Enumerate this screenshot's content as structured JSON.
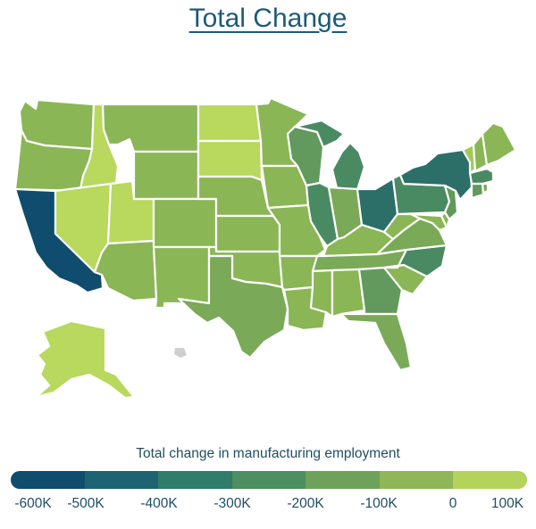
{
  "title": "Total Change",
  "legend": {
    "title": "Total change in manufacturing employment",
    "ticks": [
      "-600K",
      "-500K",
      "-400K",
      "-300K",
      "-200K",
      "-100K",
      "0",
      "100K"
    ],
    "colors": [
      "#0f4c6e",
      "#1e6372",
      "#2f7d6a",
      "#4c8f60",
      "#6ea25a",
      "#8fb658",
      "#b3d35a"
    ]
  },
  "colors": {
    "c0": "#0f4c6e",
    "c1": "#2c6e68",
    "c2": "#4a8a62",
    "c3": "#62995c",
    "c4": "#7aa958",
    "c5": "#8ab656",
    "c6": "#a3c957",
    "c7": "#b8d85e"
  },
  "map_data": {
    "variable": "Total change in manufacturing employment",
    "states": [
      {
        "name": "Washington",
        "level": "c5"
      },
      {
        "name": "Oregon",
        "level": "c5"
      },
      {
        "name": "California",
        "level": "c0"
      },
      {
        "name": "Idaho",
        "level": "c7"
      },
      {
        "name": "Nevada",
        "level": "c7"
      },
      {
        "name": "Utah",
        "level": "c7"
      },
      {
        "name": "Arizona",
        "level": "c5"
      },
      {
        "name": "Montana",
        "level": "c5"
      },
      {
        "name": "Wyoming",
        "level": "c5"
      },
      {
        "name": "Colorado",
        "level": "c5"
      },
      {
        "name": "New Mexico",
        "level": "c5"
      },
      {
        "name": "North Dakota",
        "level": "c7"
      },
      {
        "name": "South Dakota",
        "level": "c7"
      },
      {
        "name": "Nebraska",
        "level": "c5"
      },
      {
        "name": "Kansas",
        "level": "c5"
      },
      {
        "name": "Oklahoma",
        "level": "c5"
      },
      {
        "name": "Texas",
        "level": "c4"
      },
      {
        "name": "Minnesota",
        "level": "c5"
      },
      {
        "name": "Iowa",
        "level": "c5"
      },
      {
        "name": "Missouri",
        "level": "c5"
      },
      {
        "name": "Arkansas",
        "level": "c5"
      },
      {
        "name": "Louisiana",
        "level": "c5"
      },
      {
        "name": "Wisconsin",
        "level": "c3"
      },
      {
        "name": "Illinois",
        "level": "c2"
      },
      {
        "name": "Michigan",
        "level": "c2"
      },
      {
        "name": "Indiana",
        "level": "c4"
      },
      {
        "name": "Ohio",
        "level": "c1"
      },
      {
        "name": "Kentucky",
        "level": "c5"
      },
      {
        "name": "Tennessee",
        "level": "c4"
      },
      {
        "name": "Mississippi",
        "level": "c5"
      },
      {
        "name": "Alabama",
        "level": "c5"
      },
      {
        "name": "Georgia",
        "level": "c3"
      },
      {
        "name": "Florida",
        "level": "c4"
      },
      {
        "name": "South Carolina",
        "level": "c5"
      },
      {
        "name": "North Carolina",
        "level": "c2"
      },
      {
        "name": "Virginia",
        "level": "c4"
      },
      {
        "name": "West Virginia",
        "level": "c5"
      },
      {
        "name": "Pennsylvania",
        "level": "c2"
      },
      {
        "name": "New York",
        "level": "c1"
      },
      {
        "name": "Vermont",
        "level": "c6"
      },
      {
        "name": "New Hampshire",
        "level": "c5"
      },
      {
        "name": "Maine",
        "level": "c5"
      },
      {
        "name": "Massachusetts",
        "level": "c2"
      },
      {
        "name": "Connecticut",
        "level": "c3"
      },
      {
        "name": "Rhode Island",
        "level": "c4"
      },
      {
        "name": "New Jersey",
        "level": "c3"
      },
      {
        "name": "Delaware",
        "level": "c5"
      },
      {
        "name": "Maryland",
        "level": "c5"
      },
      {
        "name": "Alaska",
        "level": "c7"
      },
      {
        "name": "Hawaii",
        "level": "none"
      }
    ]
  }
}
